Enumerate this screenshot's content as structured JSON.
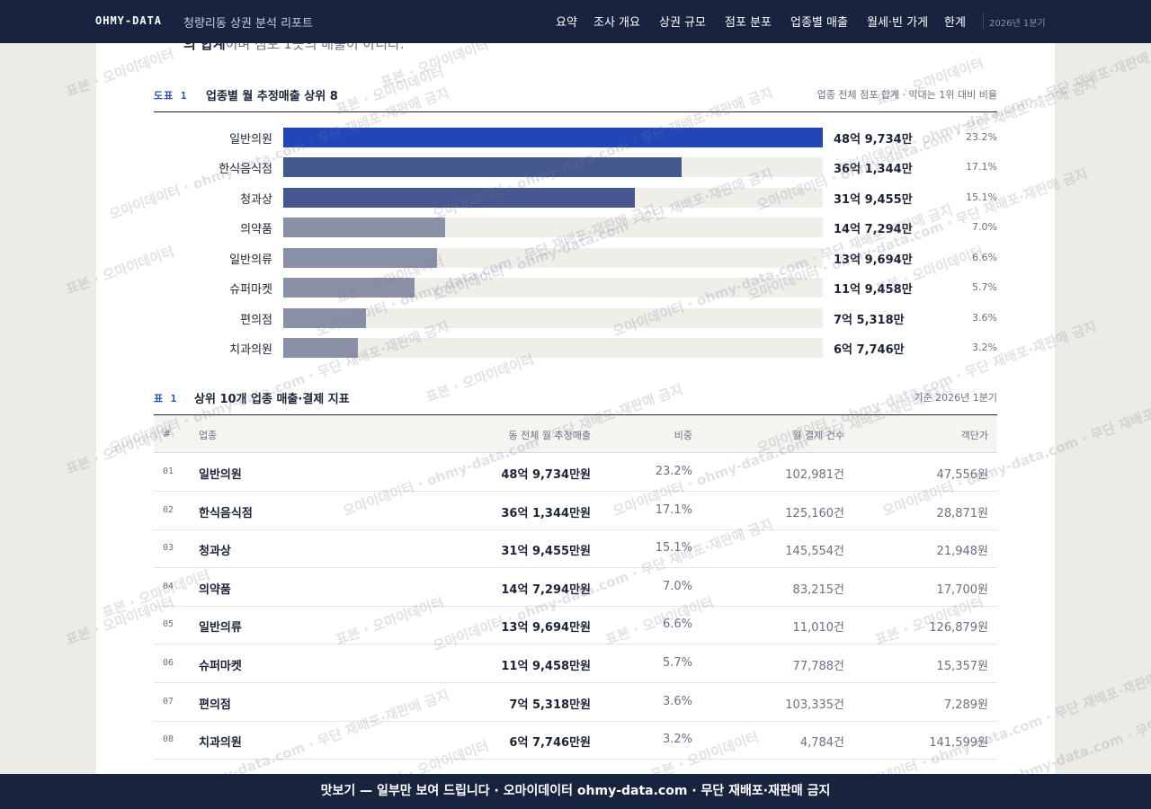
{
  "header": {
    "brand": "OHMY-DATA",
    "report_title": "청량리동 상권 분석 리포트",
    "nav": [
      "요약",
      "조사 개요",
      "상권 규모",
      "점포 분포",
      "업종별 매출",
      "월세·빈 가게",
      "한계"
    ],
    "period": "2026년 1분기"
  },
  "intro": {
    "bold": "의 합계",
    "rest": "이며 점포 1곳의 매출이 아니다."
  },
  "figure1": {
    "tag": "도표 1",
    "title": "업종별 월 추정매출 상위 8",
    "note": "업종 전체 점포 합계 · 막대는 1위 대비 비율",
    "colors": {
      "top": "#2046b8",
      "mid": "#44578f",
      "rest": "#8a91a6",
      "track": "#efeee9"
    },
    "rows": [
      {
        "label": "일반의원",
        "value_text": "48억 9,734만",
        "share": "23.2%"
      },
      {
        "label": "한식음식점",
        "value_text": "36억 1,344만",
        "share": "17.1%"
      },
      {
        "label": "청과상",
        "value_text": "31억 9,455만",
        "share": "15.1%"
      },
      {
        "label": "의약품",
        "value_text": "14억 7,294만",
        "share": "7.0%"
      },
      {
        "label": "일반의류",
        "value_text": "13억 9,694만",
        "share": "6.6%"
      },
      {
        "label": "슈퍼마켓",
        "value_text": "11억 9,458만",
        "share": "5.7%"
      },
      {
        "label": "편의점",
        "value_text": "7억 5,318만",
        "share": "3.6%"
      },
      {
        "label": "치과의원",
        "value_text": "6억 7,746만",
        "share": "3.2%"
      }
    ]
  },
  "chart_data": {
    "type": "bar",
    "title": "업종별 월 추정매출 상위 8",
    "categories": [
      "일반의원",
      "한식음식점",
      "청과상",
      "의약품",
      "일반의류",
      "슈퍼마켓",
      "편의점",
      "치과의원"
    ],
    "values": [
      489734,
      361344,
      319455,
      147294,
      139694,
      119458,
      75318,
      67746
    ],
    "unit": "만원",
    "share_pct": [
      23.2,
      17.1,
      15.1,
      7.0,
      6.6,
      5.7,
      3.6,
      3.2
    ]
  },
  "table1": {
    "tag": "표 1",
    "title": "상위 10개 업종 매출·결제 지표",
    "note": "기준 2026년 1분기",
    "columns": [
      "#",
      "업종",
      "동 전체 월 추정매출",
      "비중",
      "월 결제 건수",
      "객단가"
    ],
    "rows": [
      [
        "01",
        "일반의원",
        "48억 9,734만원",
        "23.2%",
        "102,981건",
        "47,556원"
      ],
      [
        "02",
        "한식음식점",
        "36억 1,344만원",
        "17.1%",
        "125,160건",
        "28,871원"
      ],
      [
        "03",
        "청과상",
        "31억 9,455만원",
        "15.1%",
        "145,554건",
        "21,948원"
      ],
      [
        "04",
        "의약품",
        "14억 7,294만원",
        "7.0%",
        "83,215건",
        "17,700원"
      ],
      [
        "05",
        "일반의류",
        "13억 9,694만원",
        "6.6%",
        "11,010건",
        "126,879원"
      ],
      [
        "06",
        "슈퍼마켓",
        "11억 9,458만원",
        "5.7%",
        "77,788건",
        "15,357원"
      ],
      [
        "07",
        "편의점",
        "7억 5,318만원",
        "3.6%",
        "103,335건",
        "7,289원"
      ],
      [
        "08",
        "치과의원",
        "6억 7,746만원",
        "3.2%",
        "4,784건",
        "141,599원"
      ]
    ]
  },
  "watermark": {
    "texts": [
      "표본 · 오마이데이터",
      "오마이데이터 · ohmy-data.com · 무단 재배포·재판매 금지"
    ]
  },
  "footer": {
    "text": "맛보기 — 일부만 보여 드립니다 · 오마이데이터 ohmy-data.com · 무단 재배포·재판매 금지"
  }
}
